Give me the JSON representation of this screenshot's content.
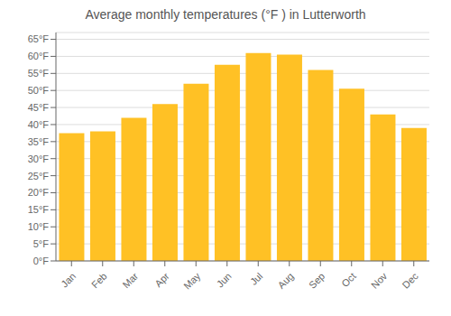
{
  "chart_data": {
    "type": "bar",
    "title": "Average monthly temperatures (°F ) in Lutterworth",
    "categories": [
      "Jan",
      "Feb",
      "Mar",
      "Apr",
      "May",
      "Jun",
      "Jul",
      "Aug",
      "Sep",
      "Oct",
      "Nov",
      "Dec"
    ],
    "values": [
      37.5,
      38.0,
      42.0,
      46.0,
      52.0,
      57.5,
      61.0,
      60.5,
      56.0,
      50.5,
      43.0,
      39.0
    ],
    "color": "#FFC125",
    "ylim": [
      0,
      67
    ],
    "yticks": [
      {
        "value": 0,
        "label": "0°F"
      },
      {
        "value": 5,
        "label": "5°F"
      },
      {
        "value": 10,
        "label": "10°F"
      },
      {
        "value": 15,
        "label": "15°F"
      },
      {
        "value": 20,
        "label": "20°F"
      },
      {
        "value": 25,
        "label": "25°F"
      },
      {
        "value": 30,
        "label": "30°F"
      },
      {
        "value": 35,
        "label": "35°F"
      },
      {
        "value": 40,
        "label": "40°F"
      },
      {
        "value": 45,
        "label": "45°F"
      },
      {
        "value": 50,
        "label": "50°F"
      },
      {
        "value": 55,
        "label": "55°F"
      },
      {
        "value": 60,
        "label": "60°F"
      },
      {
        "value": 65,
        "label": "65°F"
      }
    ],
    "grid": true
  }
}
